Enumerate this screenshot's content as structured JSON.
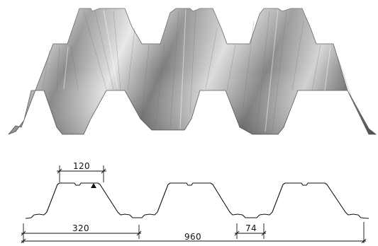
{
  "drawing": {
    "dimensions": {
      "rib_top_width": "120",
      "pitch": "320",
      "trough_width": "74",
      "cover_width": "960"
    }
  },
  "colors": {
    "line": "#111111",
    "sheet_light": "#f2f2f2",
    "sheet_mid": "#b4b4b4",
    "sheet_dark": "#5e5e5e"
  }
}
